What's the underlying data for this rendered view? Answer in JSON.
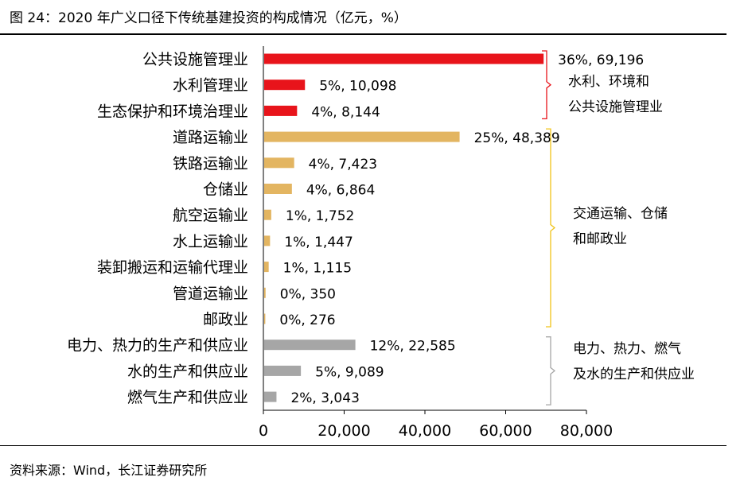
{
  "figure": {
    "title": "图 24：2020 年广义口径下传统基建投资的构成情况（亿元，%）",
    "source": "资料来源：Wind，长江证券研究所"
  },
  "chart_data": {
    "type": "bar",
    "orientation": "horizontal",
    "title": "图 24：2020 年广义口径下传统基建投资的构成情况（亿元，%）",
    "xlim": [
      0,
      80000
    ],
    "x_ticks": [
      0,
      20000,
      40000,
      60000,
      80000
    ],
    "x_tick_labels": [
      "0",
      "20,000",
      "40,000",
      "60,000",
      "80,000"
    ],
    "grid": false,
    "categories": [
      "公共设施管理业",
      "水利管理业",
      "生态保护和环境治理业",
      "道路运输业",
      "铁路运输业",
      "仓储业",
      "航空运输业",
      "水上运输业",
      "装卸搬运和运输代理业",
      "管道运输业",
      "邮政业",
      "电力、热力的生产和供应业",
      "水的生产和供应业",
      "燃气生产和供应业"
    ],
    "values": [
      69196,
      10098,
      8144,
      48389,
      7423,
      6864,
      1752,
      1447,
      1115,
      350,
      276,
      22585,
      9089,
      3043
    ],
    "data_labels": [
      "36%, 69,196",
      "5%, 10,098",
      "4%, 8,144",
      "25%, 48,389",
      "4%, 7,423",
      "4%, 6,864",
      "1%, 1,752",
      "1%, 1,447",
      "1%, 1,115",
      "0%, 350",
      "0%, 276",
      "12%, 22,585",
      "5%, 9,089",
      "2%, 3,043"
    ],
    "groups": [
      {
        "lines": [
          "水利、环境和",
          "公共设施管理业"
        ],
        "first_index": 0,
        "last_index": 2,
        "color": "#e8141b"
      },
      {
        "lines": [
          "交通运输、仓储",
          "和邮政业"
        ],
        "first_index": 3,
        "last_index": 10,
        "color": "#e3b561"
      },
      {
        "lines": [
          "电力、热力、燃气",
          "及水的生产和供应业"
        ],
        "first_index": 11,
        "last_index": 13,
        "color": "#a6a6a6"
      }
    ],
    "colors": {
      "axis": "#000000",
      "bracket_gray": "#a6a6a6",
      "bracket_gold": "#f0c419",
      "bracket_red": "#e8141b"
    }
  }
}
